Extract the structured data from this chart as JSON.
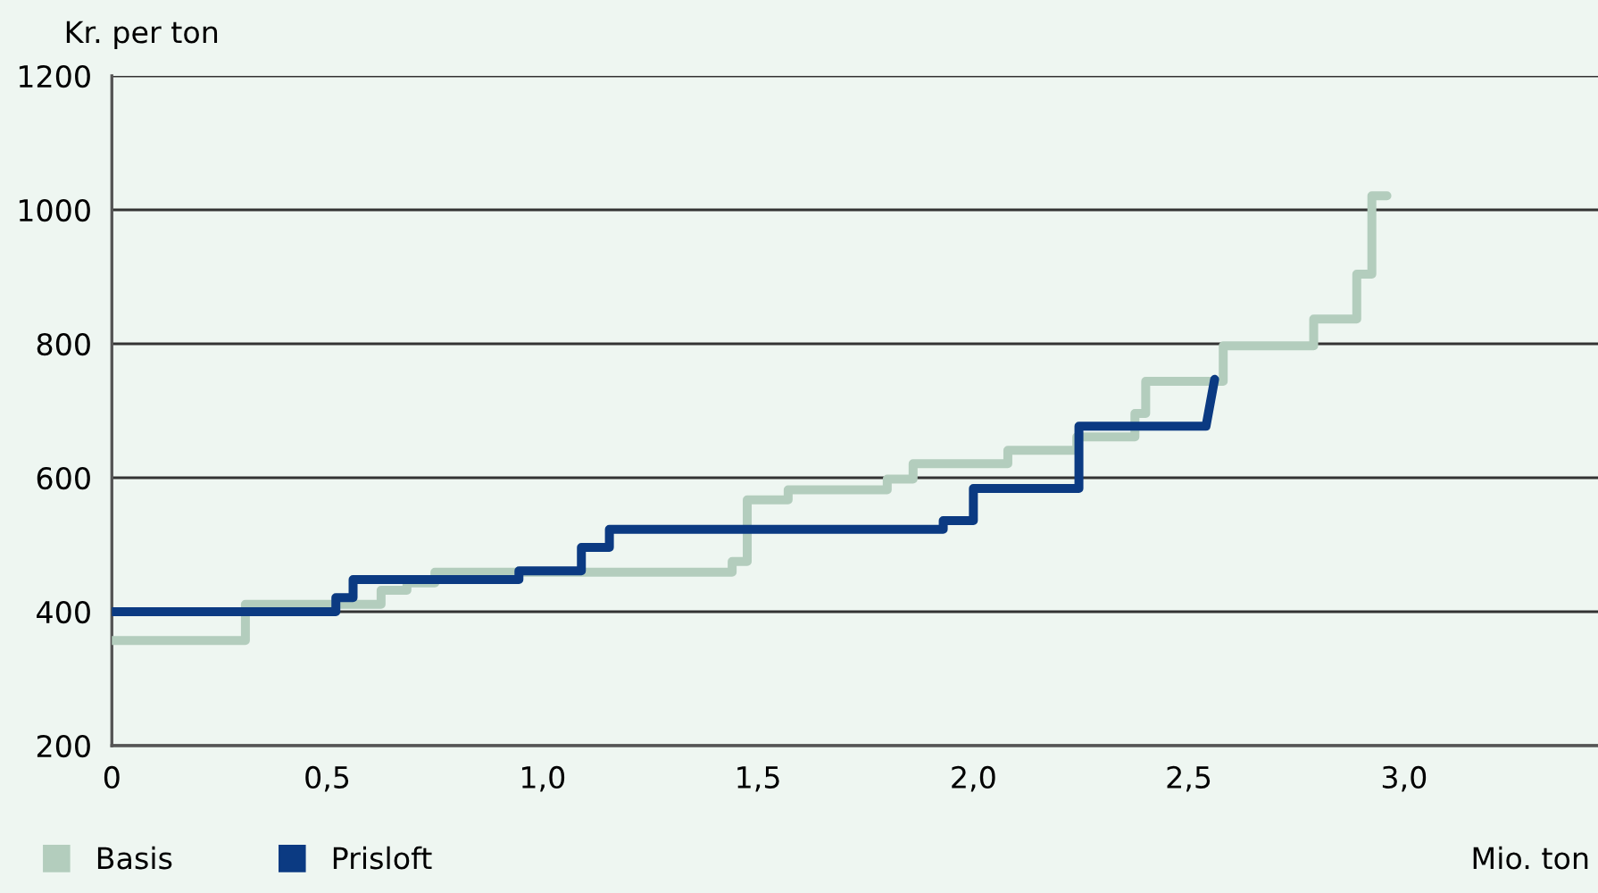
{
  "chart_data": {
    "type": "line",
    "ylabel": "Kr. per ton",
    "xlabel": "Mio. ton",
    "xlim": [
      0,
      3.45
    ],
    "xticks": [
      0,
      {
        "value": 0.5,
        "label": "0,5"
      },
      {
        "value": 1.0,
        "label": "1,0"
      },
      {
        "value": 1.5,
        "label": "1,5"
      },
      {
        "value": 2.0,
        "label": "2,0"
      },
      {
        "value": 2.5,
        "label": "2,5"
      },
      {
        "value": 3.0,
        "label": "3,0"
      }
    ],
    "ylim": [
      200,
      1200
    ],
    "yticks": [
      200,
      400,
      600,
      800,
      1000,
      1200
    ],
    "grid": "y",
    "legend": "bottom left",
    "marker": "none",
    "line_style": "solid",
    "series": [
      {
        "name": "Basis",
        "color": "#b3cdbd",
        "x": [
          0,
          0.31,
          0.31,
          0.625,
          0.625,
          0.685,
          0.685,
          0.75,
          0.75,
          1.44,
          1.44,
          1.475,
          1.475,
          1.57,
          1.57,
          1.8,
          1.8,
          1.86,
          1.86,
          2.08,
          2.08,
          2.24,
          2.24,
          2.375,
          2.375,
          2.4,
          2.4,
          2.58,
          2.58,
          2.79,
          2.79,
          2.89,
          2.89,
          2.925,
          2.925,
          2.96
        ],
        "values": [
          357,
          357,
          411,
          411,
          432,
          432,
          443,
          443,
          459,
          459,
          475,
          475,
          567,
          567,
          582,
          582,
          598,
          598,
          621,
          621,
          641,
          641,
          661,
          661,
          696,
          696,
          744,
          744,
          797,
          797,
          837,
          837,
          904,
          904,
          1021,
          1021
        ]
      },
      {
        "name": "Prisloft",
        "color": "#0b3a82",
        "x": [
          0,
          0.52,
          0.52,
          0.56,
          0.56,
          0.945,
          0.945,
          1.09,
          1.09,
          1.155,
          1.155,
          1.93,
          1.93,
          2.0,
          2.0,
          2.245,
          2.245,
          2.54,
          2.56
        ],
        "values": [
          400,
          400,
          421,
          421,
          448,
          448,
          461,
          461,
          496,
          496,
          523,
          523,
          536,
          536,
          584,
          584,
          677,
          677,
          747
        ]
      }
    ]
  }
}
